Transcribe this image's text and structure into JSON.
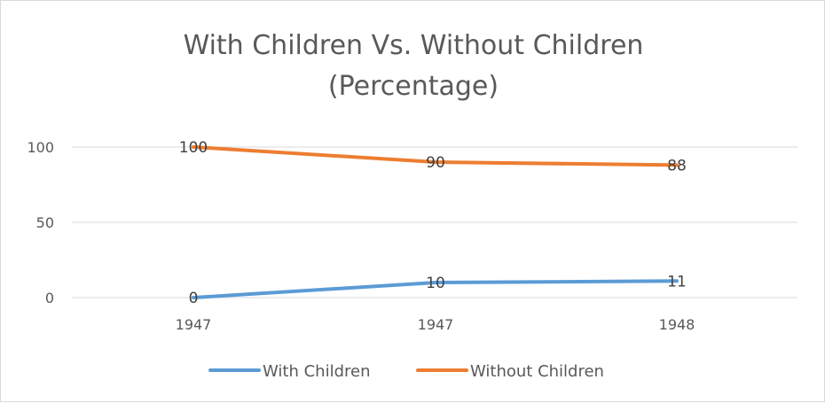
{
  "chart_data": {
    "type": "line",
    "title": "With Children Vs. Without Children",
    "subtitle": "(Percentage)",
    "categories": [
      "1947",
      "1947",
      "1948"
    ],
    "series": [
      {
        "name": "With Children",
        "values": [
          0,
          10,
          11
        ],
        "color": "#5b9bd5"
      },
      {
        "name": "Without Children",
        "values": [
          100,
          90,
          88
        ],
        "color": "#ed7d31"
      }
    ],
    "y_ticks": [
      0,
      50,
      100
    ],
    "ylim": [
      0,
      100
    ],
    "grid": true,
    "legend_position": "bottom",
    "data_labels": true
  }
}
